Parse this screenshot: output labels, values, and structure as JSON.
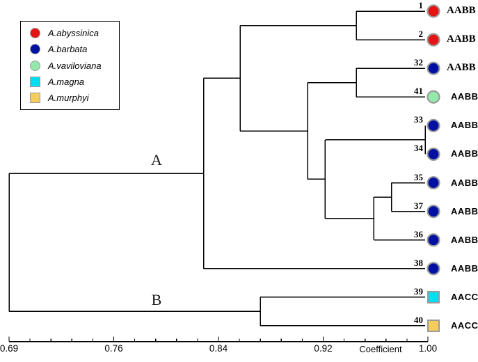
{
  "figure": {
    "background": "#ffffff",
    "axis": {
      "label": "Coefficient",
      "tick_labels": [
        "0.69",
        "0.76",
        "0.84",
        "0.92",
        "1.00"
      ]
    },
    "cluster_labels": {
      "a": "A",
      "b": "B"
    },
    "legend": {
      "items": [
        {
          "species": "A.abyssinica",
          "shape": "circle",
          "color": "#e41414"
        },
        {
          "species": "A.barbata",
          "shape": "circle",
          "color": "#0010a0"
        },
        {
          "species": "A.vaviloviana",
          "shape": "circle",
          "color": "#93e9a9"
        },
        {
          "species": "A.magna",
          "shape": "square",
          "color": "#00dff2"
        },
        {
          "species": "A.murphyi",
          "shape": "square",
          "color": "#f5cd5c"
        }
      ]
    },
    "colors": {
      "line": "#000000",
      "marker_border": "#9a9a9a"
    }
  },
  "chart_data": {
    "type": "dendrogram",
    "orientation": "left-to-right",
    "xlabel": "Coefficient",
    "xlim": [
      0.69,
      1.0
    ],
    "xticks": [
      0.69,
      0.76,
      0.84,
      0.92,
      1.0
    ],
    "xtick_labels": [
      "0.69",
      "0.76",
      "0.84",
      "0.92",
      "1.00"
    ],
    "minor_ticks_per_major_interval": 4,
    "leaves": [
      {
        "id": "1",
        "genome": "AABB",
        "species": "A.abyssinica",
        "shape": "circle",
        "color": "#e41414",
        "label_font": "serif"
      },
      {
        "id": "2",
        "genome": "AABB",
        "species": "A.abyssinica",
        "shape": "circle",
        "color": "#e41414",
        "label_font": "serif"
      },
      {
        "id": "32",
        "genome": "AABB",
        "species": "A.barbata",
        "shape": "circle",
        "color": "#0010a0",
        "label_font": "serif"
      },
      {
        "id": "41",
        "genome": "AABB",
        "species": "A.vaviloviana",
        "shape": "circle",
        "color": "#93e9a9",
        "label_font": "sans"
      },
      {
        "id": "33",
        "genome": "AABB",
        "species": "A.barbata",
        "shape": "circle",
        "color": "#0010a0",
        "label_font": "sans"
      },
      {
        "id": "34",
        "genome": "AABB",
        "species": "A.barbata",
        "shape": "circle",
        "color": "#0010a0",
        "label_font": "sans"
      },
      {
        "id": "35",
        "genome": "AABB",
        "species": "A.barbata",
        "shape": "circle",
        "color": "#0010a0",
        "label_font": "sans"
      },
      {
        "id": "37",
        "genome": "AABB",
        "species": "A.barbata",
        "shape": "circle",
        "color": "#0010a0",
        "label_font": "sans"
      },
      {
        "id": "36",
        "genome": "AABB",
        "species": "A.barbata",
        "shape": "circle",
        "color": "#0010a0",
        "label_font": "sans"
      },
      {
        "id": "38",
        "genome": "AABB",
        "species": "A.barbata",
        "shape": "circle",
        "color": "#0010a0",
        "label_font": "sans"
      },
      {
        "id": "39",
        "genome": "AACC",
        "species": "A.magna",
        "shape": "square",
        "color": "#00dff2",
        "label_font": "sans"
      },
      {
        "id": "40",
        "genome": "AACC",
        "species": "A.murphyi",
        "shape": "square",
        "color": "#f5cd5c",
        "label_font": "sans"
      }
    ],
    "tree": {
      "coefficient": 0.69,
      "children": [
        {
          "coefficient": 0.834,
          "cluster": "A",
          "children": [
            {
              "coefficient": 0.861,
              "children": [
                {
                  "coefficient": 0.947,
                  "children": [
                    {
                      "leaf": "1"
                    },
                    {
                      "leaf": "2"
                    }
                  ]
                },
                {
                  "coefficient": 0.911,
                  "children": [
                    {
                      "coefficient": 0.947,
                      "children": [
                        {
                          "leaf": "32"
                        },
                        {
                          "leaf": "41"
                        }
                      ]
                    },
                    {
                      "coefficient": 0.924,
                      "children": [
                        {
                          "coefficient": 0.998,
                          "children": [
                            {
                              "leaf": "33"
                            },
                            {
                              "leaf": "34"
                            }
                          ]
                        },
                        {
                          "coefficient": 0.96,
                          "children": [
                            {
                              "coefficient": 0.973,
                              "children": [
                                {
                                  "leaf": "35"
                                },
                                {
                                  "leaf": "37"
                                }
                              ]
                            },
                            {
                              "leaf": "36"
                            }
                          ]
                        }
                      ]
                    }
                  ]
                }
              ]
            },
            {
              "leaf": "38"
            }
          ]
        },
        {
          "coefficient": 0.876,
          "cluster": "B",
          "children": [
            {
              "leaf": "39"
            },
            {
              "leaf": "40"
            }
          ]
        }
      ]
    }
  }
}
